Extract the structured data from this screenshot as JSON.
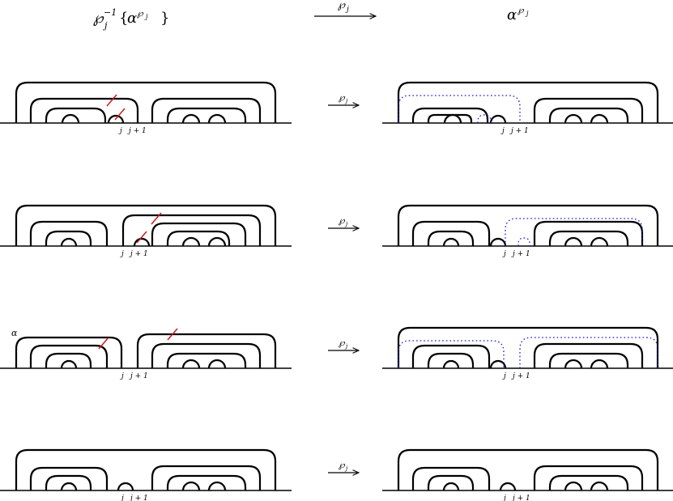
{
  "header": {
    "left_base": "℘",
    "left_sub": "j",
    "left_sup": "−1",
    "left_brace_open": "{",
    "left_alpha": "α",
    "left_alpha_sup_base": "℘",
    "left_alpha_sup_sub": "j",
    "left_brace_close": "}",
    "arrow_label_base": "℘",
    "arrow_label_sub": "j",
    "right_alpha": "α",
    "right_sup_base": "℘",
    "right_sup_sub": "j"
  },
  "rows": [
    {
      "left_label": "",
      "arrow_base": "℘",
      "arrow_sub": "j",
      "tick_j": "j",
      "tick_j1": "j + 1"
    },
    {
      "left_label": "",
      "arrow_base": "℘",
      "arrow_sub": "j",
      "tick_j": "j",
      "tick_j1": "j + 1"
    },
    {
      "left_label": "α",
      "arrow_base": "℘",
      "arrow_sub": "j",
      "tick_j": "j",
      "tick_j1": "j + 1"
    },
    {
      "left_label": "",
      "arrow_base": "℘",
      "arrow_sub": "j",
      "tick_j": "j",
      "tick_j1": "j + 1"
    }
  ],
  "colors": {
    "curve": "#000000",
    "dotted": "#1a1ad6",
    "cut": "#d01a1a"
  }
}
